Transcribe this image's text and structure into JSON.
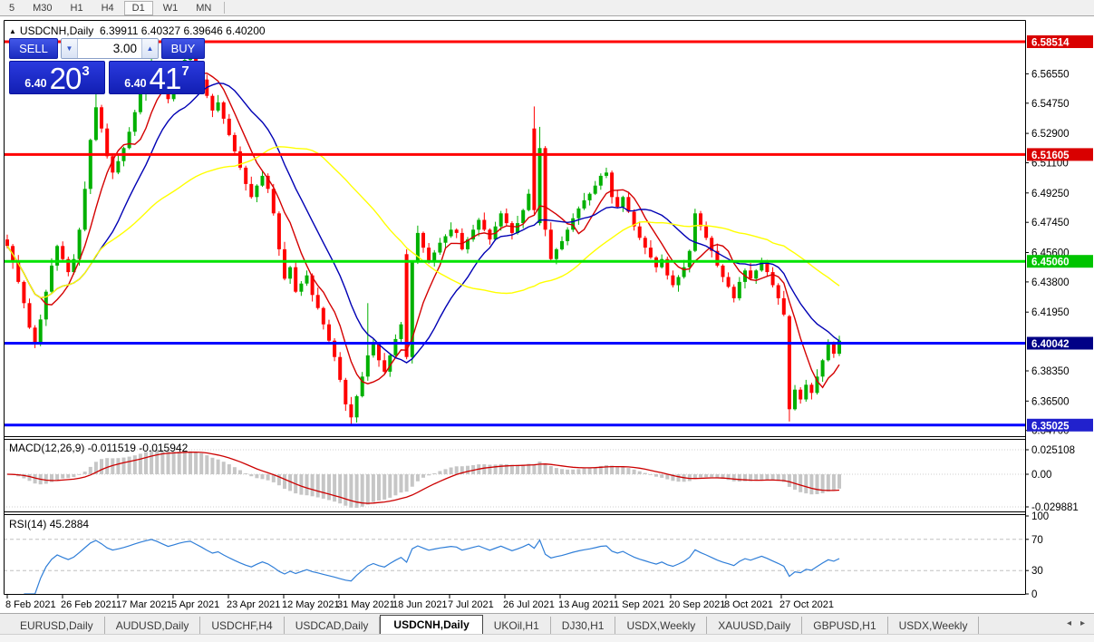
{
  "toolbar": {
    "buttons": [
      "5",
      "M30",
      "H1",
      "H4",
      "D1",
      "W1",
      "MN"
    ],
    "active": "D1"
  },
  "chart": {
    "title": {
      "marker": "▲",
      "symbol": "USDCNH,Daily",
      "ohlc": "6.39911 6.40327 6.39646 6.40200"
    },
    "trade_panel": {
      "sell_label": "SELL",
      "buy_label": "BUY",
      "volume": "3.00",
      "sell_small": "6.40",
      "sell_big": "20",
      "sell_sup": "3",
      "buy_small": "6.40",
      "buy_big": "41",
      "buy_sup": "7"
    },
    "price_scale_ticks": [
      "6.56550",
      "6.54750",
      "6.52900",
      "6.51100",
      "6.49250",
      "6.47450",
      "6.45600",
      "6.43800",
      "6.41950",
      "6.38350",
      "6.36500",
      "6.34700"
    ],
    "hlines": [
      {
        "label": "6.58514",
        "value": 6.58514,
        "line": "#ff0000",
        "badge": "#d90000"
      },
      {
        "label": "6.51605",
        "value": 6.51605,
        "line": "#ff0000",
        "badge": "#d90000"
      },
      {
        "label": "6.45060",
        "value": 6.4506,
        "line": "#00e400",
        "badge": "#00c400"
      },
      {
        "label": "6.40042",
        "value": 6.40042,
        "line": "#0000ff",
        "badge": "#000086"
      },
      {
        "label": "6.35025",
        "value": 6.35025,
        "line": "#0000ff",
        "badge": "#2121cd"
      }
    ],
    "indicators": {
      "macd_label": "MACD(12,26,9)",
      "macd_values": "-0.011519 -0.015942",
      "macd_scale": [
        "0.025108",
        "0.00",
        "-0.029881"
      ],
      "rsi_label": "RSI(14)",
      "rsi_value": "45.2884",
      "rsi_scale": [
        "100",
        "70",
        "30",
        "0"
      ]
    },
    "chart_data": {
      "type": "candlestick",
      "symbol": "USDCNH",
      "timeframe": "Daily",
      "title": "USDCNH,Daily",
      "ylim": [
        6.344,
        6.5985
      ],
      "x_labels": [
        "8 Feb 2021",
        "26 Feb 2021",
        "17 Mar 2021",
        "5 Apr 2021",
        "23 Apr 2021",
        "12 May 2021",
        "31 May 2021",
        "18 Jun 2021",
        "7 Jul 2021",
        "26 Jul 2021",
        "13 Aug 2021",
        "1 Sep 2021",
        "20 Sep 2021",
        "8 Oct 2021",
        "27 Oct 2021"
      ],
      "closes": [
        6.46,
        6.45,
        6.438,
        6.425,
        6.41,
        6.4,
        6.415,
        6.432,
        6.448,
        6.46,
        6.452,
        6.444,
        6.452,
        6.47,
        6.495,
        6.525,
        6.545,
        6.532,
        6.515,
        6.505,
        6.512,
        6.52,
        6.53,
        6.542,
        6.553,
        6.563,
        6.572,
        6.566,
        6.558,
        6.55,
        6.558,
        6.567,
        6.574,
        6.578,
        6.57,
        6.562,
        6.552,
        6.543,
        6.548,
        6.538,
        6.528,
        6.518,
        6.508,
        6.498,
        6.49,
        6.497,
        6.503,
        6.495,
        6.48,
        6.458,
        6.44,
        6.447,
        6.432,
        6.437,
        6.442,
        6.43,
        6.422,
        6.412,
        6.402,
        6.392,
        6.378,
        6.363,
        6.355,
        6.368,
        6.38,
        6.393,
        6.4,
        6.39,
        6.383,
        6.393,
        6.403,
        6.412,
        6.392,
        6.45,
        6.468,
        6.459,
        6.45,
        6.456,
        6.462,
        6.466,
        6.47,
        6.468,
        6.458,
        6.464,
        6.47,
        6.476,
        6.47,
        6.464,
        6.472,
        6.48,
        6.474,
        6.468,
        6.474,
        6.482,
        6.492,
        6.482,
        6.52,
        6.47,
        6.452,
        6.458,
        6.463,
        6.47,
        6.477,
        6.483,
        6.488,
        6.492,
        6.497,
        6.503,
        6.505,
        6.49,
        6.484,
        6.49,
        6.481,
        6.472,
        6.465,
        6.459,
        6.453,
        6.447,
        6.452,
        6.442,
        6.436,
        6.441,
        6.447,
        6.457,
        6.48,
        6.472,
        6.465,
        6.457,
        6.448,
        6.441,
        6.435,
        6.428,
        6.438,
        6.445,
        6.44,
        6.445,
        6.45,
        6.444,
        6.436,
        6.428,
        6.418,
        6.36,
        6.372,
        6.366,
        6.375,
        6.37,
        6.38,
        6.39,
        6.4,
        6.394,
        6.402
      ],
      "specials": {
        "16": {
          "high": 6.553
        },
        "26": {
          "high": 6.578
        },
        "33": {
          "high": 6.5847
        },
        "62": {
          "low": 6.3505
        },
        "65": {
          "high": 6.425
        },
        "72": {
          "open": 6.455
        },
        "73": {
          "open": 6.392
        },
        "95": {
          "open": 6.532,
          "high": 6.5455
        },
        "96": {
          "open": 6.474,
          "high": 6.533
        },
        "141": {
          "open": 6.417,
          "low": 6.3525
        }
      },
      "moving_averages": [
        {
          "name": "fast",
          "color": "#d40000",
          "window": 7
        },
        {
          "name": "medium",
          "color": "#0000b4",
          "window": 16
        },
        {
          "name": "slow",
          "color": "#ffff00",
          "window": 42
        }
      ],
      "levels": [
        6.58514,
        6.51605,
        6.4506,
        6.40042,
        6.35025
      ],
      "macd": {
        "params": [
          12,
          26,
          9
        ],
        "histogram_color": "#c6c6c6",
        "signal_color": "#cc0000"
      },
      "rsi": {
        "period": 14,
        "color": "#2f7ed8",
        "bands": [
          70,
          30
        ]
      },
      "up_color": "#00b000",
      "down_color": "#ff0000"
    }
  },
  "tabs": {
    "items": [
      "EURUSD,Daily",
      "AUDUSD,Daily",
      "USDCHF,H4",
      "USDCAD,Daily",
      "USDCNH,Daily",
      "UKOil,H1",
      "DJ30,H1",
      "USDX,Weekly",
      "XAUUSD,Daily",
      "GBPUSD,H1",
      "USDX,Weekly"
    ],
    "active": "USDCNH,Daily",
    "scroll_left": "◂",
    "scroll_right": "▸"
  }
}
